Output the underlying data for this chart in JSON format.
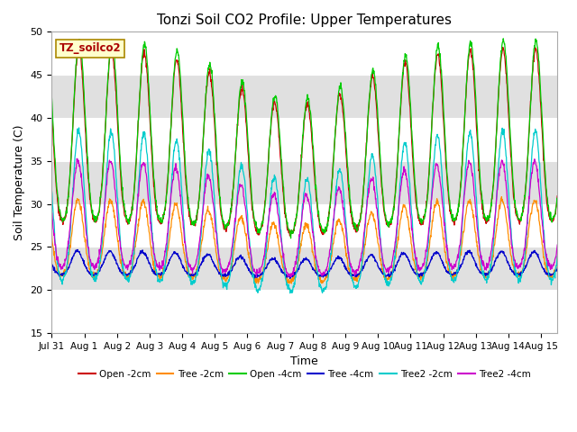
{
  "title": "Tonzi Soil CO2 Profile: Upper Temperatures",
  "xlabel": "Time",
  "ylabel": "Soil Temperature (C)",
  "ylim": [
    15,
    50
  ],
  "label_text": "TZ_soilco2",
  "series": [
    {
      "name": "Open -2cm",
      "color": "#cc0000"
    },
    {
      "name": "Tree -2cm",
      "color": "#ff8c00"
    },
    {
      "name": "Open -4cm",
      "color": "#00cc00"
    },
    {
      "name": "Tree -4cm",
      "color": "#0000cc"
    },
    {
      "name": "Tree2 -2cm",
      "color": "#00cccc"
    },
    {
      "name": "Tree2 -4cm",
      "color": "#cc00cc"
    }
  ],
  "tick_labels": [
    "Jul 31",
    "Aug 1",
    "Aug 2",
    "Aug 3",
    "Aug 4",
    "Aug 5",
    "Aug 6",
    "Aug 7",
    "Aug 8",
    "Aug 9",
    "Aug 10",
    "Aug 11",
    "Aug 12",
    "Aug 13",
    "Aug 14",
    "Aug 15"
  ],
  "yticks": [
    15,
    20,
    25,
    30,
    35,
    40,
    45,
    50
  ],
  "total_days": 15.5,
  "num_points_per_day": 96,
  "background_color": "#ffffff",
  "band_color": "#e0e0e0",
  "title_fontsize": 11,
  "axis_label_fontsize": 9,
  "tick_fontsize": 8,
  "legend_fontsize": 8
}
